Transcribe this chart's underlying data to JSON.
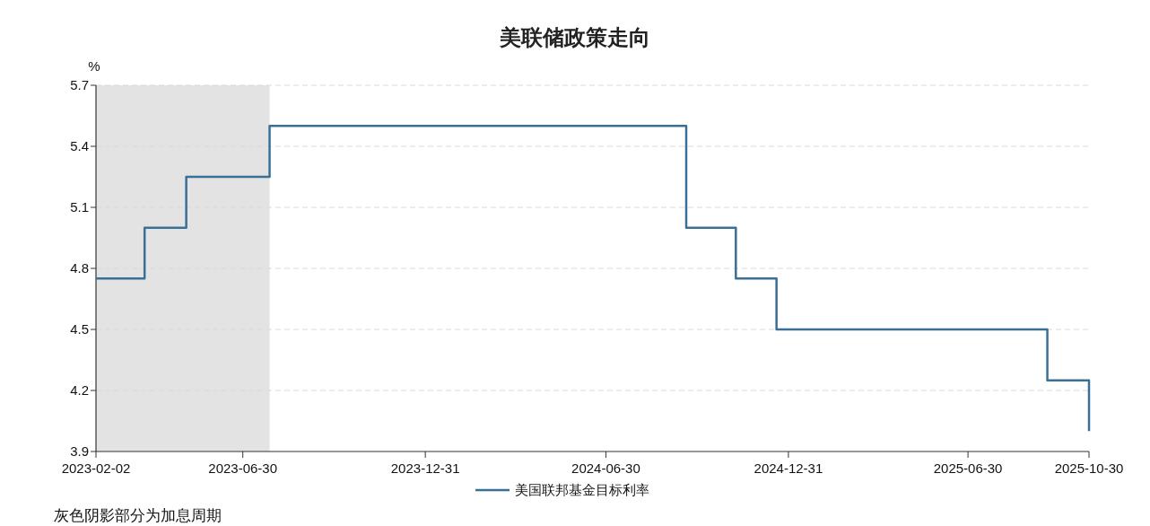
{
  "chart_data": {
    "type": "step",
    "title": "美联储政策走向",
    "ylabel": "%",
    "x": [
      "2023-02-02",
      "2023-03-23",
      "2023-05-04",
      "2023-07-27",
      "2024-09-19",
      "2024-11-08",
      "2024-12-19",
      "2025-09-18",
      "2025-10-30"
    ],
    "series": [
      {
        "name": "美国联邦基金目标利率",
        "color": "#3a6f96",
        "values": [
          4.75,
          5.0,
          5.25,
          5.5,
          5.0,
          4.75,
          4.5,
          4.25,
          4.0
        ]
      }
    ],
    "xlim": [
      "2023-02-02",
      "2025-10-30"
    ],
    "xticks": [
      "2023-02-02",
      "2023-06-30",
      "2023-12-31",
      "2024-06-30",
      "2024-12-31",
      "2025-06-30",
      "2025-10-30"
    ],
    "ylim": [
      3.9,
      5.7
    ],
    "yticks": [
      3.9,
      4.2,
      4.5,
      4.8,
      5.1,
      5.4,
      5.7
    ],
    "bands": [
      {
        "axis": "x",
        "from": "2023-02-02",
        "to": "2023-07-27",
        "color": "#e3e3e3"
      }
    ],
    "grid": "y",
    "legend": "bottom",
    "annotations": [
      "灰色阴影部分为加息周期"
    ]
  }
}
